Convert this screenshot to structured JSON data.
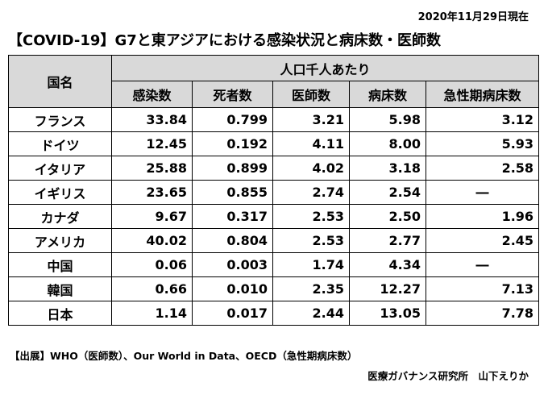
{
  "date": "2020年11月29日現在",
  "title": "【COVID-19】G7と東アジアにおける感染状況と病床数・医師数",
  "table": {
    "country_header": "国名",
    "group_header": "人口千人あたり",
    "columns": [
      "感染数",
      "死者数",
      "医師数",
      "病床数",
      "急性期病床数"
    ],
    "rows": [
      {
        "country": "フランス",
        "values": [
          "33.84",
          "0.799",
          "3.21",
          "5.98",
          "3.12"
        ]
      },
      {
        "country": "ドイツ",
        "values": [
          "12.45",
          "0.192",
          "4.11",
          "8.00",
          "5.93"
        ]
      },
      {
        "country": "イタリア",
        "values": [
          "25.88",
          "0.899",
          "4.02",
          "3.18",
          "2.58"
        ]
      },
      {
        "country": "イギリス",
        "values": [
          "23.65",
          "0.855",
          "2.74",
          "2.54",
          "―"
        ]
      },
      {
        "country": "カナダ",
        "values": [
          "9.67",
          "0.317",
          "2.53",
          "2.50",
          "1.96"
        ]
      },
      {
        "country": "アメリカ",
        "values": [
          "40.02",
          "0.804",
          "2.53",
          "2.77",
          "2.45"
        ]
      },
      {
        "country": "中国",
        "values": [
          "0.06",
          "0.003",
          "1.74",
          "4.34",
          "―"
        ]
      },
      {
        "country": "韓国",
        "values": [
          "0.66",
          "0.010",
          "2.35",
          "12.27",
          "7.13"
        ]
      },
      {
        "country": "日本",
        "values": [
          "1.14",
          "0.017",
          "2.44",
          "13.05",
          "7.78"
        ]
      }
    ]
  },
  "source": "【出展】WHO（医師数）、Our World in Data、OECD（急性期病床数）",
  "credit": "医療ガバナンス研究所　山下えりか"
}
